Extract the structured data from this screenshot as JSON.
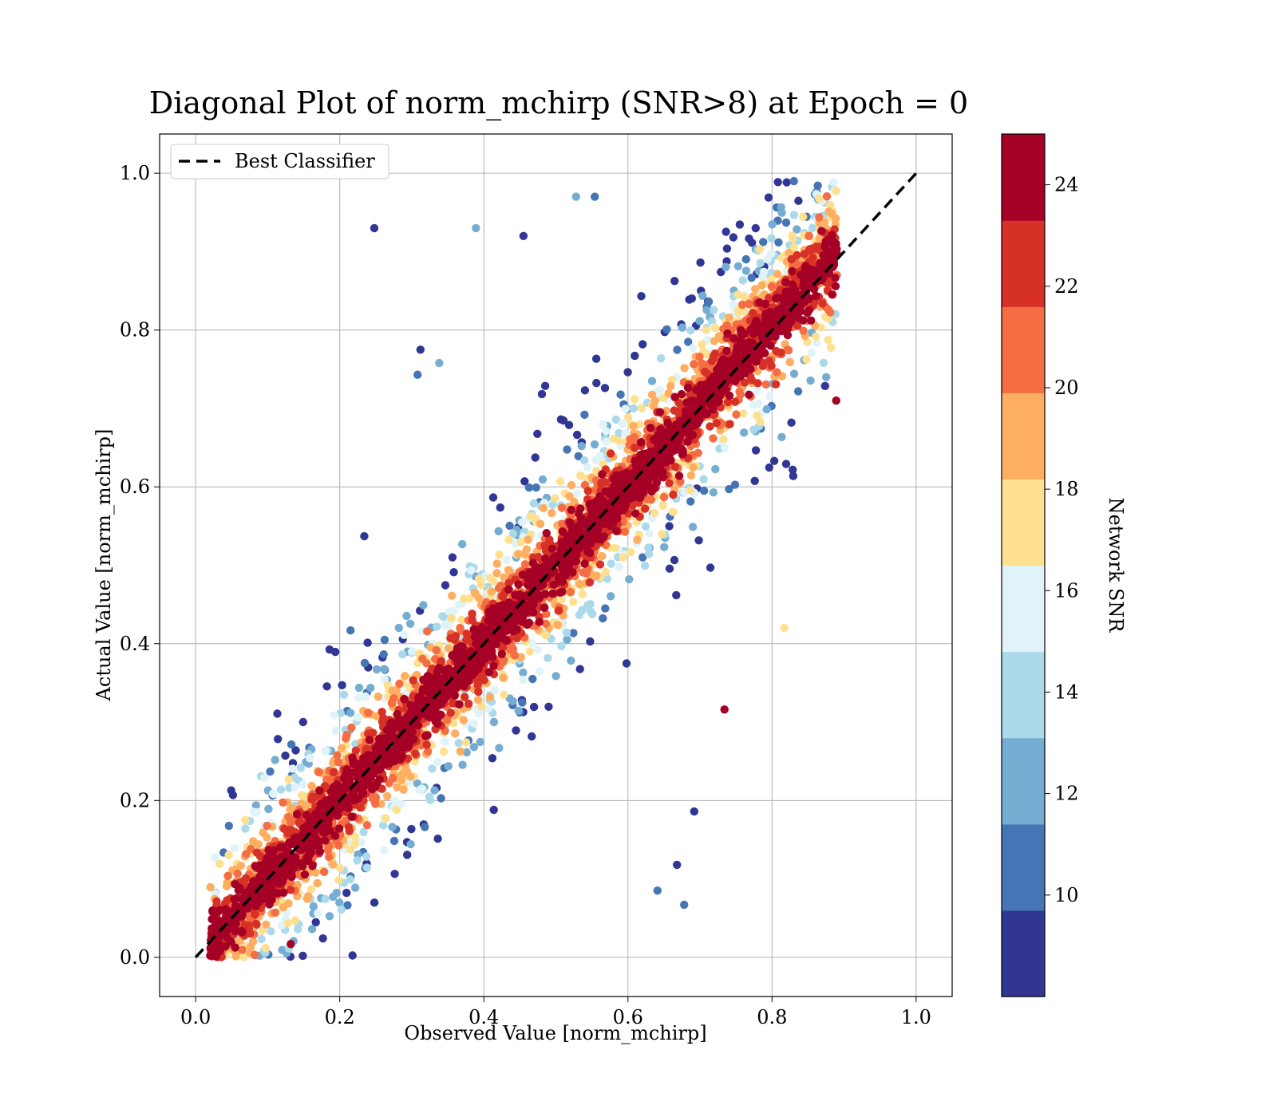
{
  "chart_data": {
    "type": "scatter",
    "title": "Diagonal Plot of norm_mchirp (SNR>8) at Epoch = 0",
    "xlabel": "Observed Value [norm_mchirp]",
    "ylabel": "Actual Value [norm_mchirp]",
    "xlim": [
      -0.05,
      1.05
    ],
    "ylim": [
      -0.05,
      1.05
    ],
    "x_ticks": [
      "0.0",
      "0.2",
      "0.4",
      "0.6",
      "0.8",
      "1.0"
    ],
    "y_ticks": [
      "0.0",
      "0.2",
      "0.4",
      "0.6",
      "0.8",
      "1.0"
    ],
    "grid": true,
    "legend": {
      "placement": "top-left",
      "entries": [
        "Best Classifier"
      ]
    },
    "reference_line": {
      "name": "Best Classifier",
      "style": "dashed",
      "color": "#000000",
      "from": [
        0,
        0
      ],
      "to": [
        1,
        1
      ]
    },
    "colorbar": {
      "label": "Network SNR",
      "range": [
        8,
        25
      ],
      "ticks": [
        "10",
        "12",
        "14",
        "16",
        "18",
        "20",
        "22",
        "24"
      ],
      "tick_values": [
        10,
        12,
        14,
        16,
        18,
        20,
        22,
        24
      ],
      "colors": [
        "#313695",
        "#4575b4",
        "#74add1",
        "#abd9e9",
        "#e0f3f8",
        "#fee090",
        "#fdae61",
        "#f46d43",
        "#d73027",
        "#a50026"
      ]
    },
    "scatter_summary": {
      "description_of_distribution": "dense cloud along the diagonal",
      "x_range": [
        0.02,
        0.9
      ],
      "y_range": [
        0.0,
        0.99
      ],
      "high_snr_points_cluster_near_diagonal": true
    },
    "sample_points": [
      {
        "x": 0.248,
        "y": 0.93,
        "snr": 9
      },
      {
        "x": 0.389,
        "y": 0.93,
        "snr": 12
      },
      {
        "x": 0.455,
        "y": 0.92,
        "snr": 9
      },
      {
        "x": 0.528,
        "y": 0.97,
        "snr": 12
      },
      {
        "x": 0.554,
        "y": 0.97,
        "snr": 10
      },
      {
        "x": 0.312,
        "y": 0.775,
        "snr": 9
      },
      {
        "x": 0.308,
        "y": 0.743,
        "snr": 10
      },
      {
        "x": 0.338,
        "y": 0.758,
        "snr": 12
      },
      {
        "x": 0.734,
        "y": 0.316,
        "snr": 24
      },
      {
        "x": 0.692,
        "y": 0.186,
        "snr": 9
      },
      {
        "x": 0.668,
        "y": 0.118,
        "snr": 9
      },
      {
        "x": 0.641,
        "y": 0.085,
        "snr": 11
      },
      {
        "x": 0.678,
        "y": 0.067,
        "snr": 11
      },
      {
        "x": 0.817,
        "y": 0.42,
        "snr": 17
      },
      {
        "x": 0.889,
        "y": 0.71,
        "snr": 24
      },
      {
        "x": 0.132,
        "y": 0.017,
        "snr": 24
      },
      {
        "x": 0.082,
        "y": 0.003,
        "snr": 20
      },
      {
        "x": 0.023,
        "y": 0.047,
        "snr": 16
      },
      {
        "x": 0.234,
        "y": 0.537,
        "snr": 9
      },
      {
        "x": 0.215,
        "y": 0.417,
        "snr": 10
      }
    ]
  }
}
